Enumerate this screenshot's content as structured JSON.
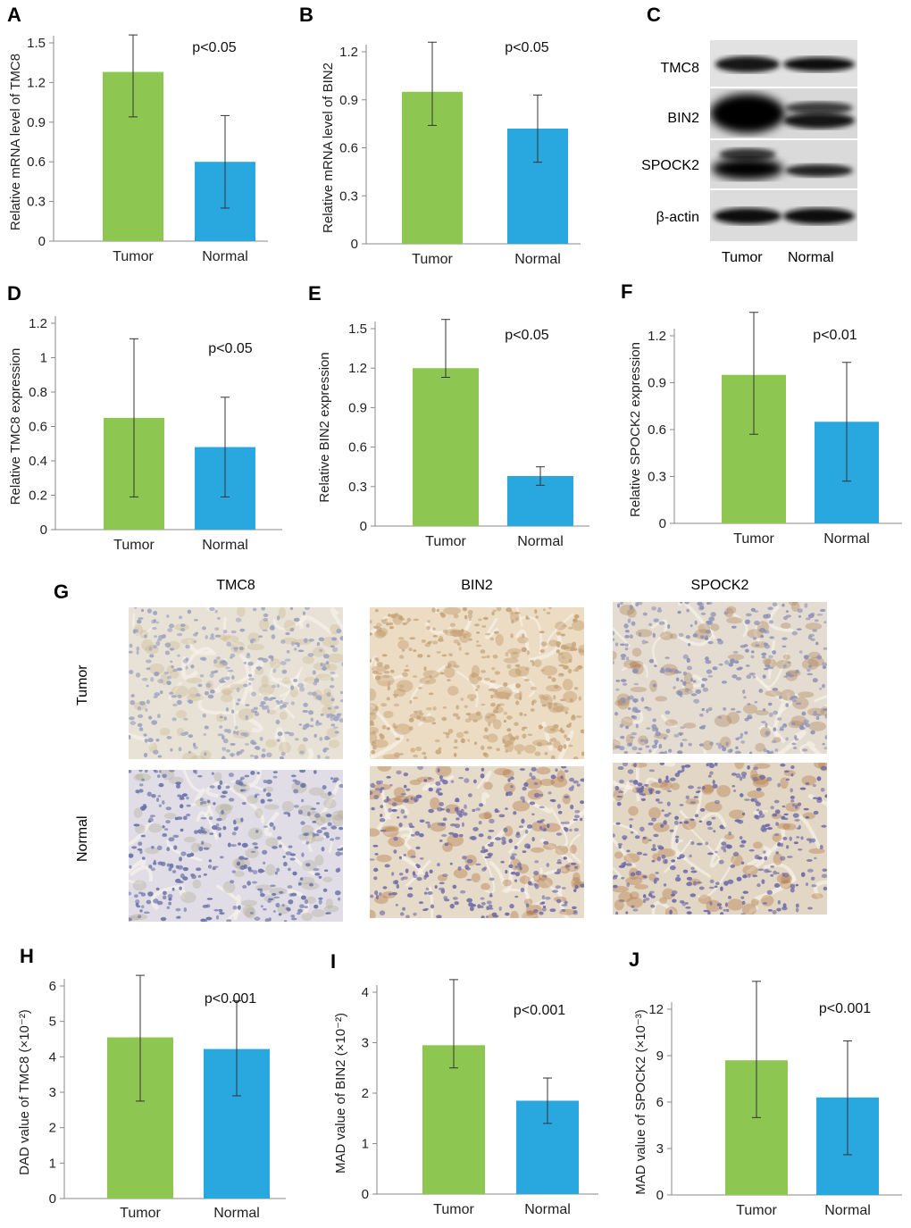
{
  "colors": {
    "tumor": "#8dc751",
    "normal": "#29a8e0",
    "axis": "#888888",
    "text": "#222222"
  },
  "charts": [
    {
      "letter": "A",
      "chart_data": {
        "type": "bar",
        "categories": [
          "Tumor",
          "Normal"
        ],
        "values": [
          1.28,
          0.6
        ],
        "errors": [
          [
            0.94,
            1.56
          ],
          [
            0.25,
            0.95
          ]
        ],
        "ylabel": "Relative mRNA level of TMC8",
        "ylim": [
          0,
          1.5
        ],
        "yticks": [
          "0",
          "0.3",
          "0.6",
          "0.9",
          "1.2",
          "1.5"
        ],
        "annotation": "p<0.05"
      }
    },
    {
      "letter": "B",
      "chart_data": {
        "type": "bar",
        "categories": [
          "Tumor",
          "Normal"
        ],
        "values": [
          0.95,
          0.72
        ],
        "errors": [
          [
            0.74,
            1.26
          ],
          [
            0.51,
            0.93
          ]
        ],
        "ylabel": "Relative mRNA level of BIN2",
        "ylim": [
          0,
          1.2
        ],
        "yticks": [
          "0",
          "0.3",
          "0.6",
          "0.9",
          "1.2"
        ],
        "annotation": "p<0.05"
      }
    },
    {
      "letter": "D",
      "chart_data": {
        "type": "bar",
        "categories": [
          "Tumor",
          "Normal"
        ],
        "values": [
          0.65,
          0.48
        ],
        "errors": [
          [
            0.19,
            1.11
          ],
          [
            0.19,
            0.77
          ]
        ],
        "ylabel": "Relative TMC8 expression",
        "ylim": [
          0,
          1.2
        ],
        "yticks": [
          "0",
          "0.2",
          "0.4",
          "0.6",
          "0.8",
          "1",
          "1.2"
        ],
        "annotation": "p<0.05"
      }
    },
    {
      "letter": "E",
      "chart_data": {
        "type": "bar",
        "categories": [
          "Tumor",
          "Normal"
        ],
        "values": [
          1.2,
          0.38
        ],
        "errors": [
          [
            1.13,
            1.57
          ],
          [
            0.31,
            0.45
          ]
        ],
        "ylabel": "Relative BIN2 expression",
        "ylim": [
          0,
          1.5
        ],
        "yticks": [
          "0",
          "0.3",
          "0.6",
          "0.9",
          "1.2",
          "1.5"
        ],
        "annotation": "p<0.05"
      }
    },
    {
      "letter": "F",
      "chart_data": {
        "type": "bar",
        "categories": [
          "Tumor",
          "Normal"
        ],
        "values": [
          0.95,
          0.65
        ],
        "errors": [
          [
            0.57,
            1.35
          ],
          [
            0.27,
            1.03
          ]
        ],
        "ylabel": "Relative SPOCK2 expression",
        "ylim": [
          0,
          1.2
        ],
        "yticks": [
          "0",
          "0.3",
          "0.6",
          "0.9",
          "1.2"
        ],
        "annotation": "p<0.01"
      }
    },
    {
      "letter": "H",
      "chart_data": {
        "type": "bar",
        "categories": [
          "Tumor",
          "Normal"
        ],
        "values": [
          4.55,
          4.22
        ],
        "errors": [
          [
            2.75,
            6.3
          ],
          [
            2.9,
            5.58
          ]
        ],
        "ylabel": "DAD value of TMC8 (×10⁻²)",
        "ylim": [
          0,
          6
        ],
        "yticks": [
          "0",
          "1",
          "2",
          "3",
          "4",
          "5",
          "6"
        ],
        "annotation": "p<0.001"
      }
    },
    {
      "letter": "I",
      "chart_data": {
        "type": "bar",
        "categories": [
          "Tumor",
          "Normal"
        ],
        "values": [
          2.95,
          1.85
        ],
        "errors": [
          [
            2.5,
            4.25
          ],
          [
            1.4,
            2.3
          ]
        ],
        "ylabel": "MAD value of BIN2 (×10⁻²)",
        "ylim": [
          0,
          4
        ],
        "yticks": [
          "0",
          "1",
          "2",
          "3",
          "4"
        ],
        "annotation": "p<0.001"
      }
    },
    {
      "letter": "J",
      "chart_data": {
        "type": "bar",
        "categories": [
          "Tumor",
          "Normal"
        ],
        "values": [
          8.7,
          6.3
        ],
        "errors": [
          [
            5.0,
            13.8
          ],
          [
            2.6,
            9.95
          ]
        ],
        "ylabel": "MAD value of SPOCK2 (×10⁻³)",
        "ylim": [
          0,
          12
        ],
        "yticks": [
          "0",
          "3",
          "6",
          "9",
          "12"
        ],
        "annotation": "p<0.001"
      }
    }
  ],
  "blot": {
    "letter": "C",
    "proteins": [
      "TMC8",
      "BIN2",
      "SPOCK2",
      "β-actin"
    ],
    "lanes": [
      "Tumor",
      "Normal"
    ]
  },
  "ihc": {
    "letter": "G",
    "columns": [
      "TMC8",
      "BIN2",
      "SPOCK2"
    ],
    "rows": [
      "Tumor",
      "Normal"
    ]
  }
}
